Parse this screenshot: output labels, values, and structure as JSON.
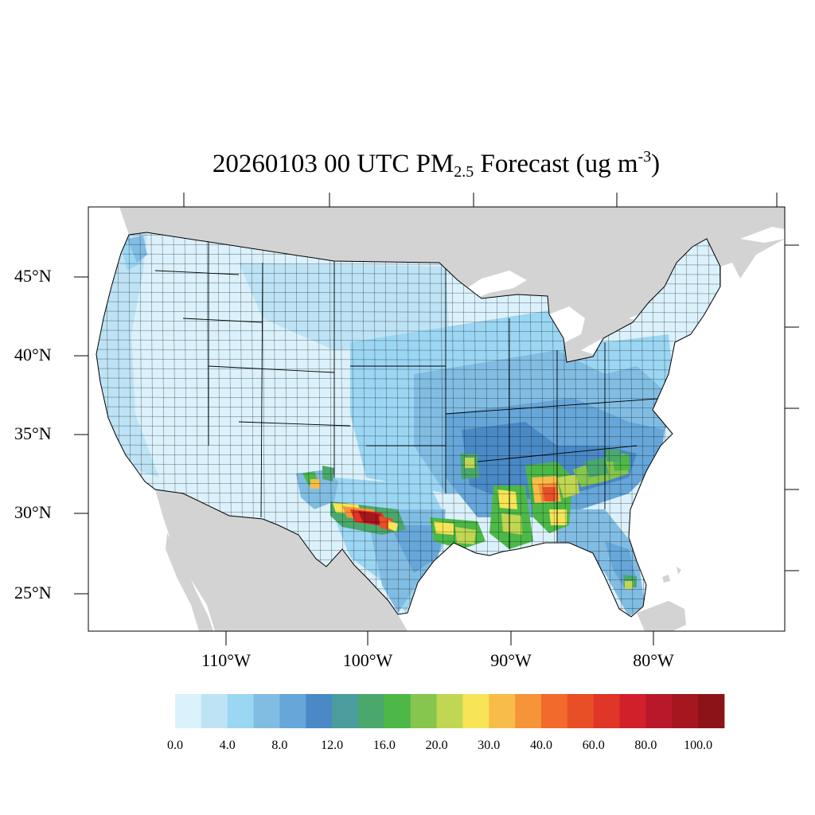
{
  "title": {
    "pre": "20260103 00 UTC PM",
    "sub": "2.5",
    "mid": " Forecast (ug m",
    "sup": "-3",
    "post": ")"
  },
  "latitude_labels": [
    "45°N",
    "40°N",
    "35°N",
    "30°N",
    "25°N"
  ],
  "longitude_labels": [
    "110°W",
    "100°W",
    "90°W",
    "80°W"
  ],
  "colorbar": {
    "colors": [
      "#dbf1fb",
      "#bde3f5",
      "#9bd6f3",
      "#81bde3",
      "#66a6d8",
      "#4a89c6",
      "#4b9c9c",
      "#4aa86c",
      "#4db848",
      "#86c54e",
      "#c1d652",
      "#f7e457",
      "#f8bd48",
      "#f69439",
      "#f26a2c",
      "#e84f27",
      "#df3627",
      "#d1202a",
      "#b8182a",
      "#a6161f",
      "#8c1418"
    ],
    "labels": [
      "0.0",
      "4.0",
      "8.0",
      "12.0",
      "16.0",
      "20.0",
      "30.0",
      "40.0",
      "60.0",
      "80.0",
      "100.0"
    ]
  },
  "map": {
    "land_color": "#d3d3d3",
    "water_color": "#ffffff",
    "base_fill": "#dbf1fb",
    "border_color": "#000000"
  }
}
